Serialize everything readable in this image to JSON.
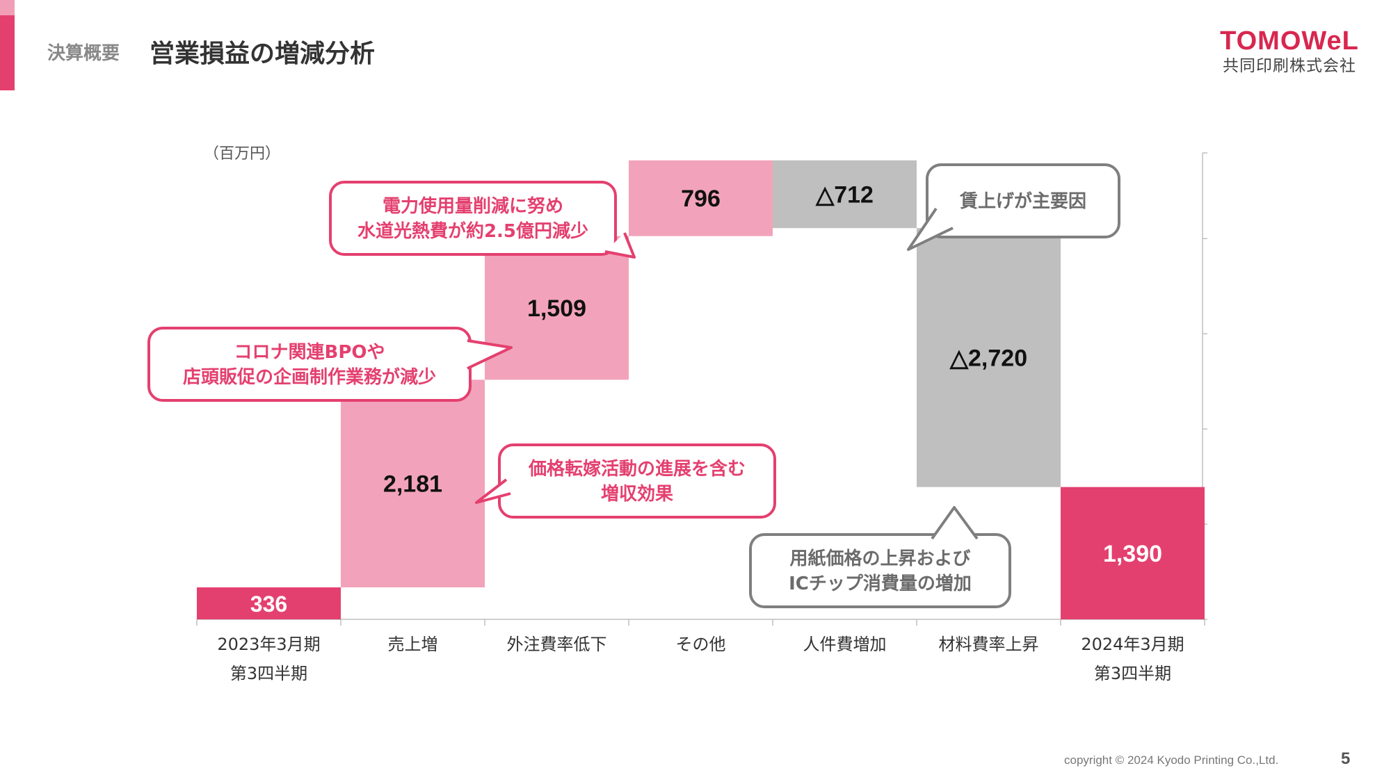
{
  "header": {
    "section": "決算概要",
    "title": "営業損益の増減分析"
  },
  "logo": {
    "name": "TOMOWeL",
    "company": "共同印刷株式会社"
  },
  "footer": {
    "copyright": "copyright © 2024 Kyodo Printing Co.,Ltd.",
    "page": "5"
  },
  "colors": {
    "accent": "#e4406f",
    "increase": "#f2a3bb",
    "decrease": "#bfbfbf",
    "pink_callout": "#e4406f",
    "gray_callout": "#7f7f7f"
  },
  "chart_data": {
    "type": "waterfall",
    "unit": "（百万円）",
    "categories": [
      [
        "2023年3月期",
        "第3四半期"
      ],
      [
        "売上増"
      ],
      [
        "外注費率低下"
      ],
      [
        "その他"
      ],
      [
        "人件費増加"
      ],
      [
        "材料費率上昇"
      ],
      [
        "2024年3月期",
        "第3四半期"
      ]
    ],
    "steps": [
      {
        "kind": "total",
        "value": 336,
        "label": "336"
      },
      {
        "kind": "increase",
        "value": 2181,
        "label": "2,181"
      },
      {
        "kind": "increase",
        "value": 1509,
        "label": "1,509"
      },
      {
        "kind": "increase",
        "value": 796,
        "label": "796"
      },
      {
        "kind": "decrease",
        "value": -712,
        "label": "△712"
      },
      {
        "kind": "decrease",
        "value": -2720,
        "label": "△2,720"
      },
      {
        "kind": "total",
        "value": 1390,
        "label": "1,390"
      }
    ],
    "ylim": [
      0,
      4900
    ],
    "y_ticks": [
      0,
      1000,
      2000,
      3000,
      4000,
      5000
    ],
    "callouts": [
      {
        "name": "callout-sales",
        "lines": [
          "価格転嫁活動の進展を含む",
          "増収効果"
        ],
        "tone": "pink"
      },
      {
        "name": "callout-outsourcing",
        "lines": [
          "コロナ関連BPOや",
          "店頭販促の企画制作業務が減少"
        ],
        "tone": "pink"
      },
      {
        "name": "callout-other",
        "lines": [
          "電力使用量削減に努め",
          "水道光熱費が約2.5億円減少"
        ],
        "tone": "pink"
      },
      {
        "name": "callout-labor",
        "lines": [
          "賃上げが主要因"
        ],
        "tone": "gray"
      },
      {
        "name": "callout-materials",
        "lines": [
          "用紙価格の上昇および",
          "ICチップ消費量の増加"
        ],
        "tone": "gray"
      }
    ]
  }
}
